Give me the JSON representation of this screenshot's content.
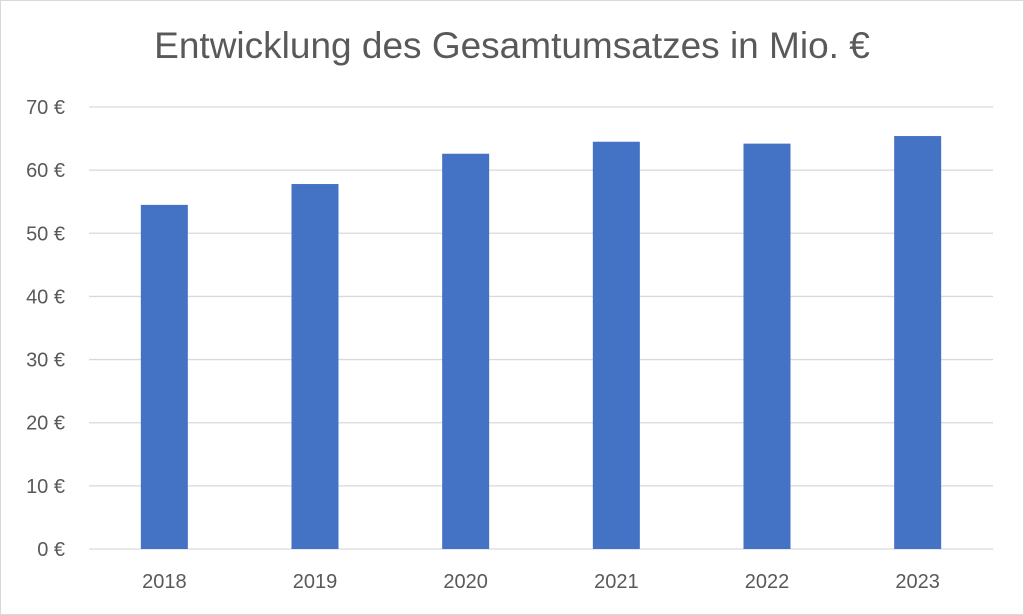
{
  "chart_data": {
    "type": "bar",
    "title": "Entwicklung des Gesamtumsatzes in Mio. €",
    "categories": [
      "2018",
      "2019",
      "2020",
      "2021",
      "2022",
      "2023"
    ],
    "values": [
      54.5,
      57.8,
      62.6,
      64.5,
      64.2,
      65.4
    ],
    "ylim": [
      0,
      70
    ],
    "yticks": [
      "0 €",
      "10 €",
      "20 €",
      "30 €",
      "40 €",
      "50 €",
      "60 €",
      "70 €"
    ],
    "ytick_values": [
      0,
      10,
      20,
      30,
      40,
      50,
      60,
      70
    ],
    "grid": true,
    "legend": "none",
    "bar_color": "#4472c4",
    "grid_color": "#d9d9d9",
    "text_color": "#595959"
  }
}
